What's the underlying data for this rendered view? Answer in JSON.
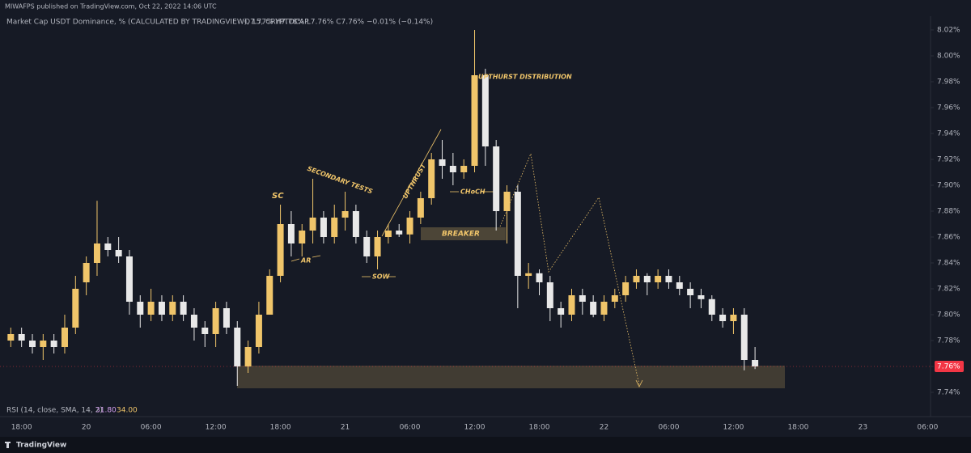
{
  "header": {
    "published": "MIWAFPS published on TradingView.com, Oct 22, 2022 14:06 UTC",
    "symbol": "Market Cap USDT Dominance, % (CALCULATED BY TRADINGVIEW), 15, CRYPTOCAP",
    "ohlc": "O7.77% H7.78% L7.76% C7.76% −0.01% (−0.14%)"
  },
  "rsi": {
    "label": "RSI (14, close, SMA, 14, 2)",
    "value": "31.80",
    "sma": "34.00"
  },
  "footer": {
    "brand": "TradingView"
  },
  "annotations": {
    "sc": "SC",
    "secondary_tests": "SECONDARY TESTS",
    "ar": "AR",
    "upthrust": "UPTHRUST",
    "sow": "SOW",
    "choch": "CHoCH",
    "breaker": "BREAKER",
    "distribution": "UPTHURST DISTRIBUTION"
  },
  "chart_data": {
    "type": "candlestick",
    "up_color": "#f0c56a",
    "down_color": "#e8e8e8",
    "grid": false,
    "categories": [
      null,
      null,
      "18:00",
      null,
      null,
      null,
      null,
      null,
      "20",
      null,
      null,
      null,
      null,
      null,
      "06:00",
      null,
      null,
      null,
      null,
      null,
      "12:00",
      null,
      null,
      null,
      null,
      null,
      "18:00",
      null,
      null,
      null,
      null,
      null,
      "21",
      null,
      null,
      null,
      null,
      null,
      "06:00",
      null,
      null,
      null,
      null,
      null,
      "12:00",
      null,
      null,
      null,
      null,
      null,
      "18:00",
      null,
      null,
      null,
      null,
      null,
      "22",
      null,
      null,
      null,
      null,
      null,
      "06:00",
      null,
      null,
      null,
      null,
      null,
      "12:00",
      null,
      null,
      null,
      null,
      null,
      "18:00",
      null,
      null,
      null,
      null,
      null,
      "23",
      null,
      null,
      null,
      null,
      null,
      "06:00"
    ],
    "open": [
      null,
      7.78,
      7.785,
      7.78,
      7.775,
      7.78,
      7.775,
      7.79,
      7.825,
      7.84,
      7.855,
      7.85,
      7.845,
      7.81,
      7.8,
      7.81,
      7.8,
      7.81,
      7.8,
      7.79,
      7.785,
      7.805,
      7.79,
      7.76,
      7.775,
      7.8,
      7.83,
      7.87,
      7.855,
      7.865,
      7.875,
      7.86,
      7.875,
      7.88,
      7.86,
      7.845,
      7.86,
      7.865,
      7.862,
      7.875,
      7.89,
      7.92,
      7.915,
      7.91,
      7.915,
      7.985,
      7.93,
      7.88,
      7.895,
      7.83,
      7.832,
      7.825,
      7.805,
      7.8,
      7.815,
      7.81,
      7.8,
      7.81,
      7.815,
      7.825,
      7.83,
      7.825,
      7.83,
      7.825,
      7.82,
      7.815,
      7.812,
      7.8,
      7.795,
      7.8,
      7.765,
      null,
      null,
      null,
      null,
      null,
      null,
      null,
      null,
      null,
      null,
      null,
      null,
      null,
      null,
      null,
      null
    ],
    "high": [
      null,
      7.79,
      7.79,
      7.785,
      7.785,
      7.785,
      7.8,
      7.83,
      7.845,
      7.888,
      7.86,
      7.86,
      7.85,
      7.815,
      7.82,
      7.815,
      7.815,
      7.815,
      7.805,
      7.795,
      7.81,
      7.81,
      7.795,
      7.78,
      7.81,
      7.835,
      7.885,
      7.88,
      7.87,
      7.905,
      7.88,
      7.885,
      7.895,
      7.885,
      7.865,
      7.865,
      7.87,
      7.87,
      7.88,
      7.895,
      7.925,
      7.935,
      7.925,
      7.92,
      8.02,
      7.99,
      7.935,
      7.9,
      7.9,
      7.84,
      7.835,
      7.83,
      7.81,
      7.82,
      7.82,
      7.815,
      7.815,
      7.82,
      7.83,
      7.835,
      7.832,
      7.835,
      7.835,
      7.83,
      7.825,
      7.82,
      7.815,
      7.805,
      7.805,
      7.805,
      7.775,
      null,
      null,
      null,
      null,
      null,
      null,
      null,
      null,
      null,
      null,
      null,
      null,
      null,
      null,
      null,
      null
    ],
    "low": [
      null,
      7.775,
      7.775,
      7.77,
      7.765,
      7.77,
      7.77,
      7.785,
      7.815,
      7.83,
      7.845,
      7.84,
      7.8,
      7.79,
      7.795,
      7.795,
      7.795,
      7.795,
      7.78,
      7.775,
      7.775,
      7.785,
      7.745,
      7.755,
      7.77,
      7.8,
      7.825,
      7.845,
      7.845,
      7.855,
      7.855,
      7.855,
      7.865,
      7.855,
      7.84,
      7.835,
      7.855,
      7.86,
      7.855,
      7.87,
      7.885,
      7.905,
      7.9,
      7.905,
      7.91,
      7.915,
      7.865,
      7.855,
      7.805,
      7.82,
      7.815,
      7.795,
      7.79,
      7.795,
      7.8,
      7.798,
      7.795,
      7.805,
      7.81,
      7.82,
      7.815,
      7.82,
      7.82,
      7.815,
      7.805,
      7.805,
      7.795,
      7.79,
      7.785,
      7.757,
      7.758,
      null,
      null,
      null,
      null,
      null,
      null,
      null,
      null,
      null,
      null,
      null,
      null,
      null,
      null,
      null,
      null
    ],
    "close": [
      null,
      7.785,
      7.78,
      7.775,
      7.78,
      7.775,
      7.79,
      7.82,
      7.84,
      7.855,
      7.85,
      7.845,
      7.81,
      7.8,
      7.81,
      7.8,
      7.81,
      7.8,
      7.79,
      7.785,
      7.805,
      7.79,
      7.76,
      7.775,
      7.8,
      7.83,
      7.87,
      7.855,
      7.865,
      7.875,
      7.86,
      7.875,
      7.88,
      7.86,
      7.845,
      7.86,
      7.865,
      7.862,
      7.875,
      7.89,
      7.92,
      7.915,
      7.91,
      7.915,
      7.985,
      7.93,
      7.88,
      7.895,
      7.83,
      7.832,
      7.825,
      7.805,
      7.8,
      7.815,
      7.81,
      7.8,
      7.81,
      7.815,
      7.825,
      7.83,
      7.825,
      7.83,
      7.825,
      7.82,
      7.815,
      7.812,
      7.8,
      7.795,
      7.8,
      7.765,
      7.76,
      null,
      null,
      null,
      null,
      null,
      null,
      null,
      null,
      null,
      null,
      null,
      null,
      null,
      null,
      null,
      null
    ],
    "ylim": [
      7.74,
      8.02
    ],
    "yticks": [
      {
        "value": 7.74,
        "label": "7.74%"
      },
      {
        "value": 7.76,
        "label": "7.76%"
      },
      {
        "value": 7.78,
        "label": "7.78%"
      },
      {
        "value": 7.8,
        "label": "7.80%"
      },
      {
        "value": 7.82,
        "label": "7.82%"
      },
      {
        "value": 7.84,
        "label": "7.84%"
      },
      {
        "value": 7.86,
        "label": "7.86%"
      },
      {
        "value": 7.88,
        "label": "7.88%"
      },
      {
        "value": 7.9,
        "label": "7.90%"
      },
      {
        "value": 7.92,
        "label": "7.92%"
      },
      {
        "value": 7.94,
        "label": "7.94%"
      },
      {
        "value": 7.96,
        "label": "7.96%"
      },
      {
        "value": 7.98,
        "label": "7.98%"
      },
      {
        "value": 8.0,
        "label": "8.00%"
      },
      {
        "value": 8.02,
        "label": "8.02%"
      }
    ],
    "last_price": {
      "value": 7.76,
      "label": "7.76%"
    },
    "last_color": "#f23645"
  }
}
